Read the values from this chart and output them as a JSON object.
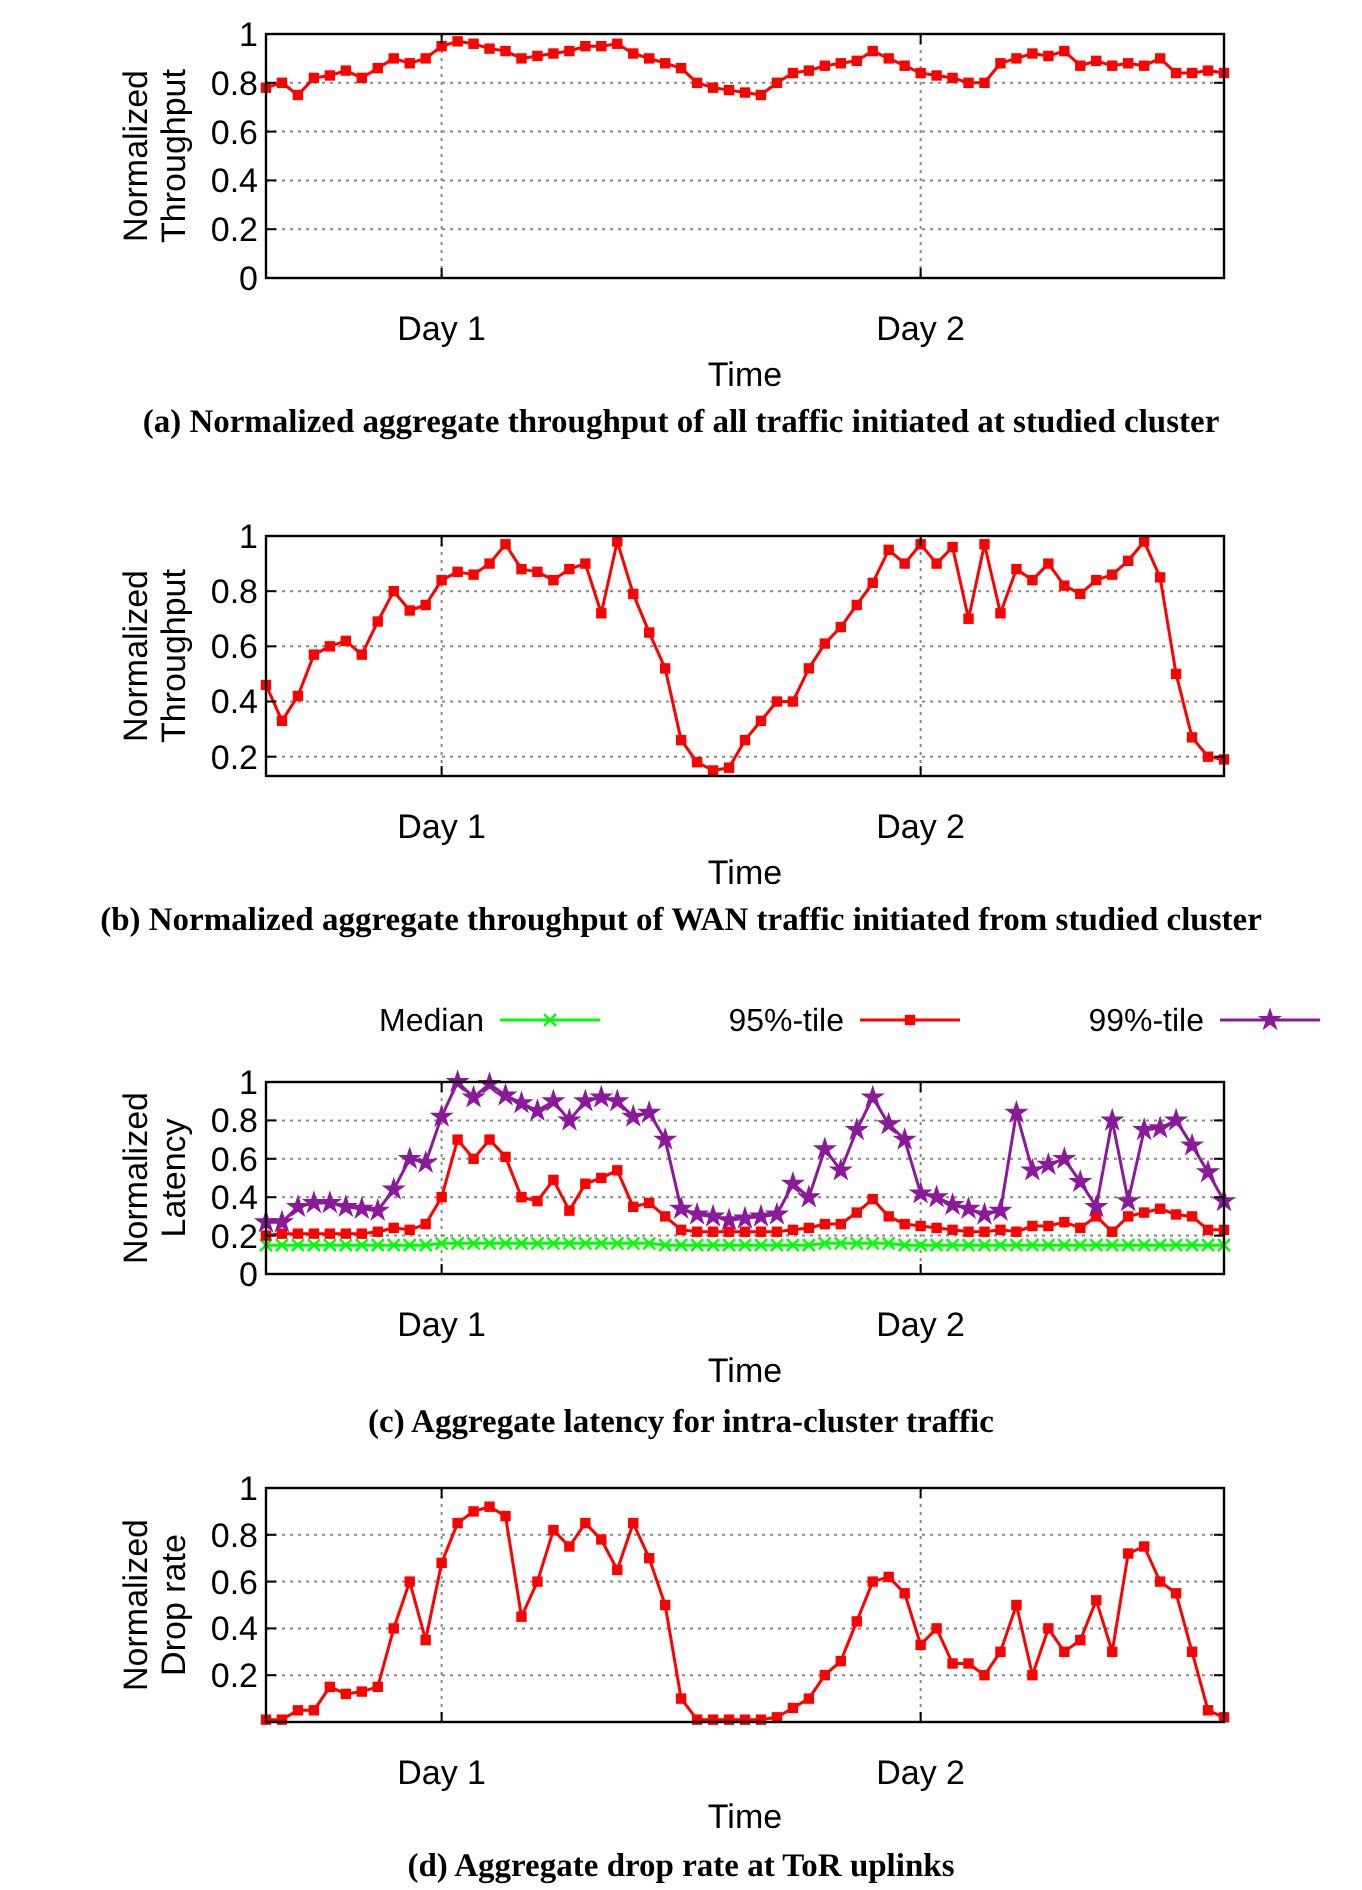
{
  "chart_data": [
    {
      "type": "line",
      "title": "(a) Normalized aggregate throughput of all traffic initiated at studied cluster",
      "xlabel": "Time",
      "ylabel": "Normalized\nThroughput",
      "ylim": [
        0,
        1
      ],
      "yticks": [
        0,
        0.2,
        0.4,
        0.6,
        0.8,
        1
      ],
      "grid": true,
      "marker": "square",
      "line_style": "solid",
      "categories": [
        null,
        null,
        null,
        null,
        null,
        null,
        null,
        null,
        null,
        null,
        null,
        "Day 1",
        null,
        null,
        null,
        null,
        null,
        null,
        null,
        null,
        null,
        null,
        null,
        null,
        null,
        null,
        null,
        null,
        null,
        null,
        null,
        null,
        null,
        null,
        null,
        null,
        null,
        null,
        null,
        null,
        null,
        "Day 2",
        null,
        null,
        null,
        null,
        null,
        null,
        null,
        null,
        null,
        null,
        null,
        null,
        null,
        null,
        null,
        null,
        null,
        null,
        null
      ],
      "series": [
        {
          "color": "#ff0000",
          "values": [
            0.78,
            0.8,
            0.75,
            0.82,
            0.83,
            0.85,
            0.82,
            0.86,
            0.9,
            0.88,
            0.9,
            0.95,
            0.97,
            0.96,
            0.94,
            0.93,
            0.9,
            0.91,
            0.92,
            0.93,
            0.95,
            0.95,
            0.96,
            0.92,
            0.9,
            0.88,
            0.86,
            0.8,
            0.78,
            0.77,
            0.76,
            0.75,
            0.8,
            0.84,
            0.85,
            0.87,
            0.88,
            0.89,
            0.93,
            0.9,
            0.87,
            0.84,
            0.83,
            0.82,
            0.8,
            0.8,
            0.88,
            0.9,
            0.92,
            0.91,
            0.93,
            0.87,
            0.89,
            0.87,
            0.88,
            0.87,
            0.9,
            0.84,
            0.84,
            0.85,
            0.84
          ]
        }
      ]
    },
    {
      "type": "line",
      "title": "(b) Normalized aggregate throughput of WAN traffic initiated from studied cluster",
      "xlabel": "Time",
      "ylabel": "Normalized\nThroughput",
      "ylim": [
        0.13,
        1
      ],
      "yticks": [
        0.2,
        0.4,
        0.6,
        0.8,
        1
      ],
      "grid": true,
      "marker": "square",
      "line_style": "solid",
      "categories": [
        null,
        null,
        null,
        null,
        null,
        null,
        null,
        null,
        null,
        null,
        null,
        "Day 1",
        null,
        null,
        null,
        null,
        null,
        null,
        null,
        null,
        null,
        null,
        null,
        null,
        null,
        null,
        null,
        null,
        null,
        null,
        null,
        null,
        null,
        null,
        null,
        null,
        null,
        null,
        null,
        null,
        null,
        "Day 2",
        null,
        null,
        null,
        null,
        null,
        null,
        null,
        null,
        null,
        null,
        null,
        null,
        null,
        null,
        null,
        null,
        null,
        null,
        null
      ],
      "series": [
        {
          "color": "#ff0000",
          "values": [
            0.46,
            0.33,
            0.42,
            0.57,
            0.6,
            0.62,
            0.57,
            0.69,
            0.8,
            0.73,
            0.75,
            0.84,
            0.87,
            0.86,
            0.9,
            0.97,
            0.88,
            0.87,
            0.84,
            0.88,
            0.9,
            0.72,
            0.98,
            0.79,
            0.65,
            0.52,
            0.26,
            0.18,
            0.15,
            0.16,
            0.26,
            0.33,
            0.4,
            0.4,
            0.52,
            0.61,
            0.67,
            0.75,
            0.83,
            0.95,
            0.9,
            0.97,
            0.9,
            0.96,
            0.7,
            0.97,
            0.72,
            0.88,
            0.84,
            0.9,
            0.82,
            0.79,
            0.84,
            0.86,
            0.91,
            0.98,
            0.85,
            0.5,
            0.27,
            0.2,
            0.19
          ]
        }
      ]
    },
    {
      "type": "line",
      "title": "(c) Aggregate latency for intra-cluster traffic",
      "xlabel": "Time",
      "ylabel": "Normalized\nLatency",
      "ylim": [
        0,
        1
      ],
      "yticks": [
        0,
        0.2,
        0.4,
        0.6,
        0.8,
        1
      ],
      "grid": true,
      "legend": "top",
      "line_style": "solid",
      "categories": [
        null,
        null,
        null,
        null,
        null,
        null,
        null,
        null,
        null,
        null,
        null,
        "Day 1",
        null,
        null,
        null,
        null,
        null,
        null,
        null,
        null,
        null,
        null,
        null,
        null,
        null,
        null,
        null,
        null,
        null,
        null,
        null,
        null,
        null,
        null,
        null,
        null,
        null,
        null,
        null,
        null,
        null,
        "Day 2",
        null,
        null,
        null,
        null,
        null,
        null,
        null,
        null,
        null,
        null,
        null,
        null,
        null,
        null,
        null,
        null,
        null,
        null,
        null
      ],
      "series": [
        {
          "name": "Median",
          "color": "#00ff00",
          "marker": "cross",
          "values": [
            0.15,
            0.15,
            0.15,
            0.15,
            0.15,
            0.15,
            0.15,
            0.15,
            0.15,
            0.15,
            0.15,
            0.16,
            0.16,
            0.16,
            0.16,
            0.16,
            0.16,
            0.16,
            0.16,
            0.16,
            0.16,
            0.16,
            0.16,
            0.16,
            0.16,
            0.15,
            0.15,
            0.15,
            0.15,
            0.15,
            0.15,
            0.15,
            0.15,
            0.15,
            0.15,
            0.16,
            0.16,
            0.16,
            0.16,
            0.16,
            0.15,
            0.15,
            0.15,
            0.15,
            0.15,
            0.15,
            0.15,
            0.15,
            0.15,
            0.15,
            0.15,
            0.15,
            0.15,
            0.15,
            0.15,
            0.15,
            0.15,
            0.15,
            0.15,
            0.15,
            0.15
          ]
        },
        {
          "name": "95%-tile",
          "color": "#ff0000",
          "marker": "square",
          "values": [
            0.2,
            0.21,
            0.21,
            0.21,
            0.21,
            0.21,
            0.21,
            0.22,
            0.24,
            0.23,
            0.26,
            0.4,
            0.7,
            0.6,
            0.7,
            0.61,
            0.4,
            0.38,
            0.49,
            0.33,
            0.47,
            0.5,
            0.54,
            0.35,
            0.37,
            0.3,
            0.23,
            0.22,
            0.22,
            0.22,
            0.22,
            0.22,
            0.22,
            0.23,
            0.24,
            0.26,
            0.26,
            0.32,
            0.39,
            0.3,
            0.26,
            0.25,
            0.24,
            0.23,
            0.22,
            0.22,
            0.23,
            0.22,
            0.25,
            0.25,
            0.27,
            0.24,
            0.3,
            0.22,
            0.3,
            0.32,
            0.34,
            0.31,
            0.3,
            0.23,
            0.23
          ]
        },
        {
          "name": "99%-tile",
          "color": "#8b1a9b",
          "marker": "star",
          "values": [
            0.27,
            0.27,
            0.35,
            0.37,
            0.37,
            0.35,
            0.34,
            0.33,
            0.44,
            0.6,
            0.58,
            0.82,
            1.0,
            0.92,
            0.99,
            0.93,
            0.89,
            0.85,
            0.9,
            0.8,
            0.9,
            0.92,
            0.9,
            0.82,
            0.84,
            0.7,
            0.34,
            0.31,
            0.3,
            0.28,
            0.29,
            0.3,
            0.31,
            0.47,
            0.4,
            0.65,
            0.54,
            0.75,
            0.92,
            0.78,
            0.7,
            0.42,
            0.4,
            0.36,
            0.34,
            0.31,
            0.33,
            0.84,
            0.54,
            0.57,
            0.6,
            0.48,
            0.35,
            0.8,
            0.38,
            0.75,
            0.76,
            0.8,
            0.67,
            0.53,
            0.38
          ]
        }
      ]
    },
    {
      "type": "line",
      "title": "(d) Aggregate drop rate at ToR uplinks",
      "xlabel": "Time",
      "ylabel": "Normalized\nDrop rate",
      "ylim": [
        0,
        1
      ],
      "yticks": [
        0.2,
        0.4,
        0.6,
        0.8,
        1
      ],
      "grid": true,
      "marker": "square",
      "line_style": "solid",
      "categories": [
        null,
        null,
        null,
        null,
        null,
        null,
        null,
        null,
        null,
        null,
        null,
        "Day 1",
        null,
        null,
        null,
        null,
        null,
        null,
        null,
        null,
        null,
        null,
        null,
        null,
        null,
        null,
        null,
        null,
        null,
        null,
        null,
        null,
        null,
        null,
        null,
        null,
        null,
        null,
        null,
        null,
        null,
        "Day 2",
        null,
        null,
        null,
        null,
        null,
        null,
        null,
        null,
        null,
        null,
        null,
        null,
        null,
        null,
        null,
        null,
        null,
        null,
        null
      ],
      "series": [
        {
          "color": "#ff0000",
          "values": [
            0.01,
            0.01,
            0.05,
            0.05,
            0.15,
            0.12,
            0.13,
            0.15,
            0.4,
            0.6,
            0.35,
            0.68,
            0.85,
            0.9,
            0.92,
            0.88,
            0.45,
            0.6,
            0.82,
            0.75,
            0.85,
            0.78,
            0.65,
            0.85,
            0.7,
            0.5,
            0.1,
            0.01,
            0.01,
            0.01,
            0.01,
            0.01,
            0.02,
            0.06,
            0.1,
            0.2,
            0.26,
            0.43,
            0.6,
            0.62,
            0.55,
            0.33,
            0.4,
            0.25,
            0.25,
            0.2,
            0.3,
            0.5,
            0.2,
            0.4,
            0.3,
            0.35,
            0.52,
            0.3,
            0.72,
            0.75,
            0.6,
            0.55,
            0.3,
            0.05,
            0.02
          ]
        }
      ]
    }
  ]
}
